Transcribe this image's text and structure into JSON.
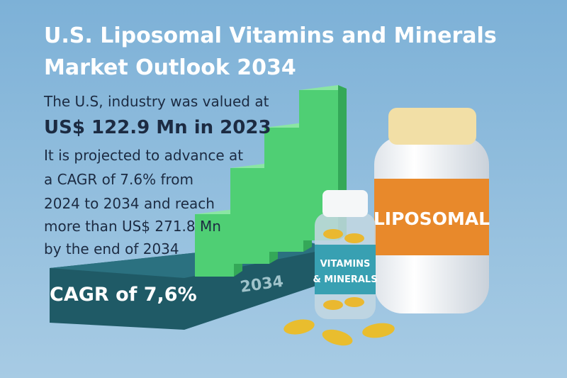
{
  "header": {
    "title_lines": [
      "U.S. Liposomal Vitamins and Minerals",
      "Market Outlook 2034"
    ]
  },
  "body": {
    "lines": [
      "The U.S, industry was valued at",
      "US$ 122.9 Mn in 2023",
      "It is projected to advance at",
      "a CAGR of 7.6% from",
      "2024 to 2034 and reach",
      "more than US$ 271.8 Mn",
      "by the end of 2034"
    ]
  },
  "illustration": {
    "platform_label": "CAGR of 7,6%",
    "platform_year": "2034",
    "large_bottle_label": "LIPOSOMAL",
    "small_bottle_label": [
      "VITAMINS",
      "& MINERALS"
    ]
  }
}
